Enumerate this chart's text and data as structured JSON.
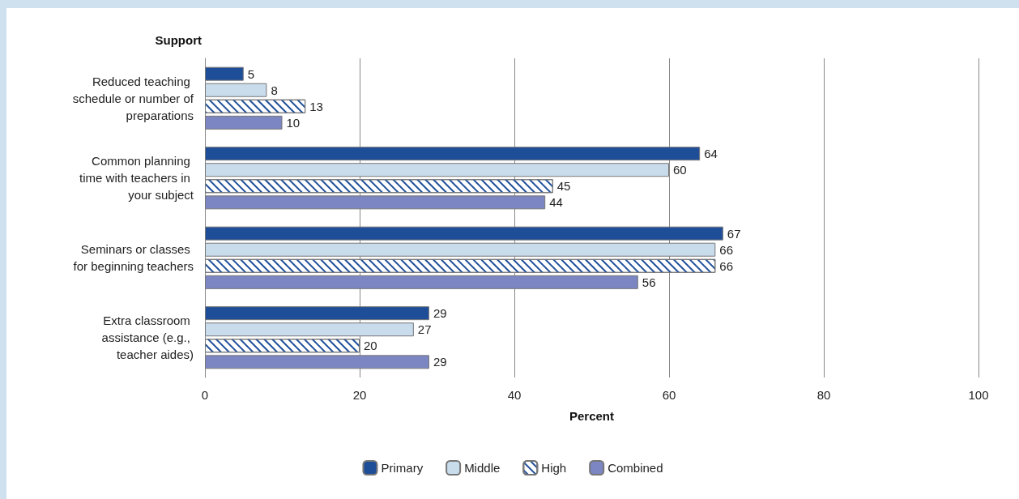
{
  "chart_data": {
    "type": "bar",
    "orientation": "horizontal",
    "ylabel": "Support",
    "xlabel": "Percent",
    "categories": [
      "Reduced teaching schedule or number of preparations",
      "Common planning time with teachers in your subject",
      "Seminars or classes for beginning teachers",
      "Extra classroom assistance (e.g., teacher aides)"
    ],
    "series": [
      {
        "name": "Primary",
        "color": "#1f4e99",
        "values": [
          5,
          64,
          67,
          29
        ]
      },
      {
        "name": "Middle",
        "color": "#c8dcec",
        "values": [
          8,
          60,
          66,
          27
        ]
      },
      {
        "name": "High",
        "color": "#ffffff",
        "values": [
          13,
          45,
          66,
          20
        ]
      },
      {
        "name": "Combined",
        "color": "#7b86c2",
        "values": [
          10,
          44,
          56,
          29
        ]
      }
    ],
    "xlim": [
      0,
      100
    ],
    "xticks": [
      0,
      20,
      40,
      60,
      80,
      100
    ],
    "grid": "x",
    "legend": "bottom",
    "data_labels": true
  }
}
